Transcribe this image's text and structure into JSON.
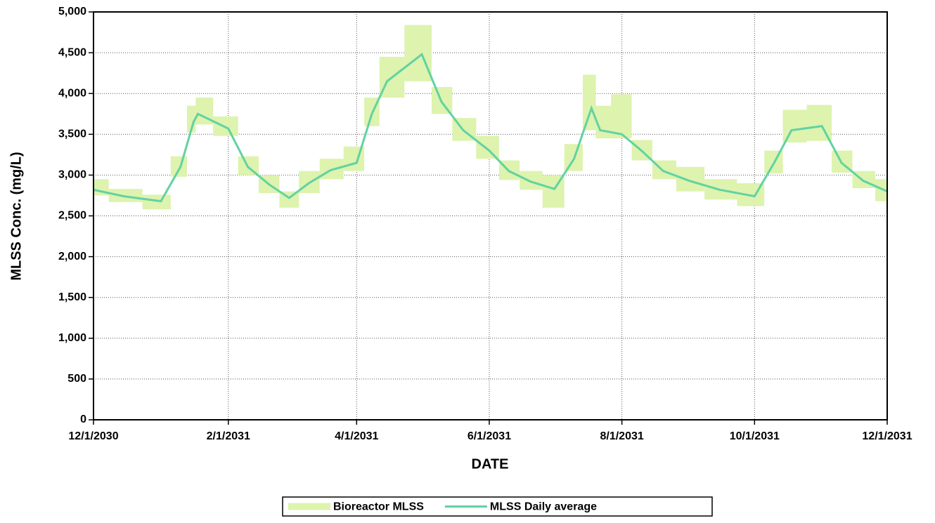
{
  "chart_data": {
    "type": "line",
    "y_label": "MLSS Conc. (mg/L)",
    "x_label": "DATE",
    "x": [
      "2030-12-01",
      "2030-12-15",
      "2031-01-01",
      "2031-01-10",
      "2031-01-16",
      "2031-01-18",
      "2031-02-01",
      "2031-02-10",
      "2031-02-20",
      "2031-03-01",
      "2031-03-10",
      "2031-03-20",
      "2031-04-01",
      "2031-04-08",
      "2031-04-15",
      "2031-05-01",
      "2031-05-10",
      "2031-05-20",
      "2031-06-01",
      "2031-06-10",
      "2031-06-20",
      "2031-07-01",
      "2031-07-10",
      "2031-07-18",
      "2031-07-22",
      "2031-08-01",
      "2031-08-10",
      "2031-08-20",
      "2031-09-01",
      "2031-09-15",
      "2031-10-01",
      "2031-10-10",
      "2031-10-18",
      "2031-11-01",
      "2031-11-10",
      "2031-11-20",
      "2031-12-01"
    ],
    "series": [
      {
        "name": "Bioreactor MLSS",
        "color": "#ddf3ae",
        "low": [
          2750,
          2670,
          2580,
          2980,
          3520,
          3620,
          3480,
          3000,
          2780,
          2600,
          2780,
          2950,
          3050,
          3600,
          3950,
          4150,
          3750,
          3420,
          3200,
          2940,
          2820,
          2600,
          3050,
          3550,
          3450,
          3450,
          3180,
          2950,
          2800,
          2700,
          2620,
          3020,
          3400,
          3420,
          3030,
          2840,
          2680
        ],
        "high": [
          2950,
          2830,
          2760,
          3230,
          3850,
          3950,
          3720,
          3230,
          3000,
          2800,
          3050,
          3200,
          3350,
          3950,
          4450,
          4840,
          4080,
          3700,
          3480,
          3180,
          3050,
          3000,
          3380,
          4230,
          3850,
          3990,
          3430,
          3180,
          3100,
          2950,
          2900,
          3300,
          3800,
          3860,
          3300,
          3050,
          2950
        ]
      },
      {
        "name": "MLSS Daily average",
        "color": "#62d2a2",
        "values": [
          2820,
          2740,
          2680,
          3100,
          3650,
          3750,
          3570,
          3100,
          2880,
          2720,
          2900,
          3060,
          3150,
          3750,
          4150,
          4480,
          3900,
          3550,
          3300,
          3050,
          2920,
          2830,
          3200,
          3820,
          3550,
          3500,
          3300,
          3050,
          2930,
          2820,
          2740,
          3150,
          3550,
          3600,
          3150,
          2930,
          2800
        ]
      }
    ],
    "xlim": [
      "2030-12-01",
      "2031-12-01"
    ],
    "xticks": [
      {
        "value": "2030-12-01",
        "label": "12/1/2030"
      },
      {
        "value": "2031-02-01",
        "label": "2/1/2031"
      },
      {
        "value": "2031-04-01",
        "label": "4/1/2031"
      },
      {
        "value": "2031-06-01",
        "label": "6/1/2031"
      },
      {
        "value": "2031-08-01",
        "label": "8/1/2031"
      },
      {
        "value": "2031-10-01",
        "label": "10/1/2031"
      },
      {
        "value": "2031-12-01",
        "label": "12/1/2031"
      }
    ],
    "ylim": [
      0,
      5000
    ],
    "yticks": [
      0,
      500,
      {
        "value": 1000,
        "label": "1,000"
      },
      {
        "value": 1500,
        "label": "1,500"
      },
      {
        "value": 2000,
        "label": "2,000"
      },
      {
        "value": 2500,
        "label": "2,500"
      },
      {
        "value": 3000,
        "label": "3,000"
      },
      {
        "value": 3500,
        "label": "3,500"
      },
      {
        "value": 4000,
        "label": "4,000"
      },
      {
        "value": 4500,
        "label": "4,500"
      },
      {
        "value": 5000,
        "label": "5,000"
      }
    ],
    "grid": true,
    "legend": "bottom"
  }
}
